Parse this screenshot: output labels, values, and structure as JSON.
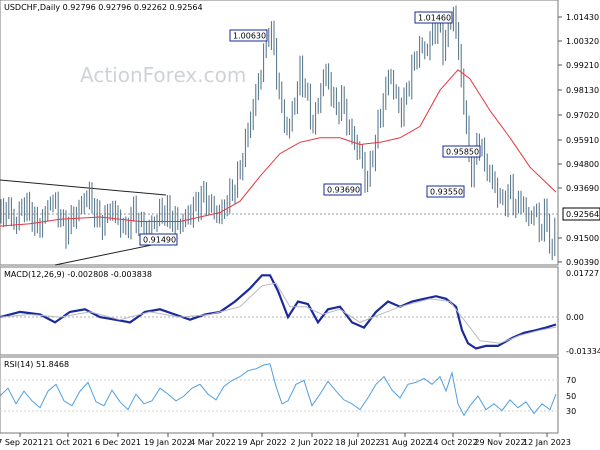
{
  "chart_data": {
    "type": "candlestick",
    "symbol_header": "USDCHF,Daily  0.92796 0.92796 0.92262 0.92564",
    "watermark": "ActionForex.com",
    "last_price": "0.92564",
    "price_ticks": [
      "1.01430",
      "1.00320",
      "0.99210",
      "0.98130",
      "0.97020",
      "0.95910",
      "0.94800",
      "0.93690",
      "0.92564",
      "0.91500",
      "0.90390"
    ],
    "price_ylim": [
      0.9039,
      1.0143
    ],
    "x_labels": [
      "7 Sep 2021",
      "21 Oct 2021",
      "6 Dec 2021",
      "19 Jan 2022",
      "4 Mar 2022",
      "19 Apr 2022",
      "2 Jun 2022",
      "18 Jul 2022",
      "31 Aug 2022",
      "14 Oct 2022",
      "29 Nov 2022",
      "12 Jan 2023"
    ],
    "price_path": [
      [
        0,
        0.922
      ],
      [
        8,
        0.926
      ],
      [
        15,
        0.918
      ],
      [
        22,
        0.928
      ],
      [
        30,
        0.924
      ],
      [
        37,
        0.917
      ],
      [
        44,
        0.922
      ],
      [
        50,
        0.93
      ],
      [
        58,
        0.925
      ],
      [
        65,
        0.915
      ],
      [
        72,
        0.922
      ],
      [
        80,
        0.926
      ],
      [
        88,
        0.932
      ],
      [
        95,
        0.924
      ],
      [
        103,
        0.919
      ],
      [
        110,
        0.926
      ],
      [
        118,
        0.921
      ],
      [
        125,
        0.916
      ],
      [
        133,
        0.925
      ],
      [
        140,
        0.918
      ],
      [
        148,
        0.916
      ],
      [
        155,
        0.921
      ],
      [
        163,
        0.925
      ],
      [
        170,
        0.922
      ],
      [
        178,
        0.919
      ],
      [
        186,
        0.922
      ],
      [
        195,
        0.926
      ],
      [
        204,
        0.932
      ],
      [
        212,
        0.926
      ],
      [
        220,
        0.922
      ],
      [
        228,
        0.93
      ],
      [
        236,
        0.937
      ],
      [
        242,
        0.947
      ],
      [
        248,
        0.96
      ],
      [
        254,
        0.972
      ],
      [
        260,
        0.985
      ],
      [
        266,
        1.0
      ],
      [
        270,
        1.006
      ],
      [
        274,
        0.995
      ],
      [
        278,
        0.98
      ],
      [
        283,
        0.966
      ],
      [
        288,
        0.96
      ],
      [
        294,
        0.972
      ],
      [
        300,
        0.985
      ],
      [
        306,
        0.978
      ],
      [
        312,
        0.962
      ],
      [
        318,
        0.972
      ],
      [
        324,
        0.986
      ],
      [
        330,
        0.98
      ],
      [
        336,
        0.968
      ],
      [
        342,
        0.975
      ],
      [
        348,
        0.962
      ],
      [
        354,
        0.955
      ],
      [
        360,
        0.95
      ],
      [
        366,
        0.937
      ],
      [
        372,
        0.948
      ],
      [
        378,
        0.962
      ],
      [
        384,
        0.975
      ],
      [
        390,
        0.986
      ],
      [
        396,
        0.975
      ],
      [
        402,
        0.968
      ],
      [
        408,
        0.98
      ],
      [
        414,
        0.99
      ],
      [
        420,
        0.998
      ],
      [
        426,
        0.995
      ],
      [
        432,
        1.003
      ],
      [
        438,
        1.008
      ],
      [
        443,
        0.997
      ],
      [
        448,
        1.005
      ],
      [
        453,
        1.014
      ],
      [
        457,
        1.0
      ],
      [
        461,
        0.985
      ],
      [
        465,
        0.965
      ],
      [
        469,
        0.95
      ],
      [
        473,
        0.938
      ],
      [
        477,
        0.958
      ],
      [
        481,
        0.952
      ],
      [
        486,
        0.944
      ],
      [
        492,
        0.938
      ],
      [
        498,
        0.932
      ],
      [
        504,
        0.928
      ],
      [
        510,
        0.935
      ],
      [
        516,
        0.925
      ],
      [
        522,
        0.93
      ],
      [
        528,
        0.92
      ],
      [
        534,
        0.926
      ],
      [
        540,
        0.915
      ],
      [
        546,
        0.924
      ],
      [
        552,
        0.903
      ],
      [
        556,
        0.92564
      ]
    ],
    "ma_path": [
      [
        0,
        0.918
      ],
      [
        30,
        0.919
      ],
      [
        60,
        0.921
      ],
      [
        100,
        0.922
      ],
      [
        140,
        0.92
      ],
      [
        180,
        0.92
      ],
      [
        220,
        0.924
      ],
      [
        240,
        0.929
      ],
      [
        260,
        0.94
      ],
      [
        280,
        0.95
      ],
      [
        300,
        0.955
      ],
      [
        320,
        0.957
      ],
      [
        340,
        0.957
      ],
      [
        360,
        0.954
      ],
      [
        380,
        0.955
      ],
      [
        400,
        0.957
      ],
      [
        420,
        0.962
      ],
      [
        440,
        0.978
      ],
      [
        458,
        0.987
      ],
      [
        470,
        0.983
      ],
      [
        490,
        0.969
      ],
      [
        510,
        0.957
      ],
      [
        530,
        0.944
      ],
      [
        556,
        0.933
      ]
    ],
    "annotations": [
      {
        "label": "1.00630",
        "value": 1.0063
      },
      {
        "label": "1.01460",
        "value": 1.0146
      },
      {
        "label": "0.93690",
        "value": 0.9369
      },
      {
        "label": "0.93550",
        "value": 0.9355
      },
      {
        "label": "0.95850",
        "value": 0.9585
      },
      {
        "label": "0.91490",
        "value": 0.9149
      }
    ],
    "macd": {
      "title": "MACD(12,26,9) -0.002808 -0.003838",
      "ticks": [
        "0.01727",
        "0.00",
        "-0.01334"
      ],
      "ylim": [
        -0.01334,
        0.01727
      ],
      "macd_path": [
        [
          0,
          0.0
        ],
        [
          20,
          0.002
        ],
        [
          40,
          0.001
        ],
        [
          55,
          -0.002
        ],
        [
          70,
          0.002
        ],
        [
          85,
          0.003
        ],
        [
          100,
          0.0
        ],
        [
          115,
          -0.001
        ],
        [
          130,
          -0.002
        ],
        [
          145,
          0.002
        ],
        [
          160,
          0.003
        ],
        [
          175,
          0.001
        ],
        [
          190,
          -0.001
        ],
        [
          205,
          0.001
        ],
        [
          220,
          0.002
        ],
        [
          235,
          0.006
        ],
        [
          250,
          0.011
        ],
        [
          262,
          0.016
        ],
        [
          270,
          0.016
        ],
        [
          278,
          0.01
        ],
        [
          288,
          0.0
        ],
        [
          298,
          0.006
        ],
        [
          308,
          0.005
        ],
        [
          318,
          -0.002
        ],
        [
          328,
          0.003
        ],
        [
          340,
          0.004
        ],
        [
          352,
          -0.002
        ],
        [
          364,
          -0.004
        ],
        [
          376,
          0.002
        ],
        [
          388,
          0.006
        ],
        [
          400,
          0.004
        ],
        [
          412,
          0.006
        ],
        [
          424,
          0.007
        ],
        [
          436,
          0.008
        ],
        [
          446,
          0.007
        ],
        [
          456,
          0.004
        ],
        [
          462,
          -0.005
        ],
        [
          468,
          -0.01
        ],
        [
          476,
          -0.012
        ],
        [
          486,
          -0.011
        ],
        [
          498,
          -0.011
        ],
        [
          512,
          -0.008
        ],
        [
          524,
          -0.006
        ],
        [
          536,
          -0.005
        ],
        [
          546,
          -0.004
        ],
        [
          556,
          -0.0028
        ]
      ],
      "signal_path": [
        [
          0,
          0.0
        ],
        [
          30,
          0.001
        ],
        [
          60,
          0.0
        ],
        [
          90,
          0.002
        ],
        [
          120,
          -0.001
        ],
        [
          150,
          0.002
        ],
        [
          180,
          0.0
        ],
        [
          210,
          0.001
        ],
        [
          240,
          0.004
        ],
        [
          262,
          0.012
        ],
        [
          276,
          0.013
        ],
        [
          290,
          0.004
        ],
        [
          306,
          0.004
        ],
        [
          322,
          0.001
        ],
        [
          340,
          0.003
        ],
        [
          360,
          -0.002
        ],
        [
          380,
          0.001
        ],
        [
          400,
          0.004
        ],
        [
          430,
          0.007
        ],
        [
          450,
          0.006
        ],
        [
          466,
          -0.002
        ],
        [
          480,
          -0.009
        ],
        [
          500,
          -0.01
        ],
        [
          520,
          -0.007
        ],
        [
          540,
          -0.005
        ],
        [
          556,
          -0.0038
        ]
      ]
    },
    "rsi": {
      "title": "RSI(14) 51.8468",
      "ticks": [
        "70",
        "50",
        "30"
      ],
      "ylim": [
        15,
        85
      ],
      "rsi_path": [
        [
          0,
          50
        ],
        [
          8,
          58
        ],
        [
          16,
          42
        ],
        [
          24,
          55
        ],
        [
          32,
          45
        ],
        [
          40,
          38
        ],
        [
          48,
          55
        ],
        [
          56,
          62
        ],
        [
          64,
          45
        ],
        [
          72,
          40
        ],
        [
          80,
          55
        ],
        [
          88,
          64
        ],
        [
          96,
          44
        ],
        [
          104,
          40
        ],
        [
          112,
          56
        ],
        [
          120,
          44
        ],
        [
          128,
          36
        ],
        [
          136,
          52
        ],
        [
          144,
          42
        ],
        [
          152,
          45
        ],
        [
          160,
          58
        ],
        [
          168,
          52
        ],
        [
          176,
          45
        ],
        [
          184,
          50
        ],
        [
          192,
          58
        ],
        [
          200,
          62
        ],
        [
          208,
          52
        ],
        [
          216,
          46
        ],
        [
          224,
          60
        ],
        [
          232,
          66
        ],
        [
          240,
          70
        ],
        [
          248,
          76
        ],
        [
          256,
          78
        ],
        [
          264,
          82
        ],
        [
          270,
          83
        ],
        [
          276,
          60
        ],
        [
          282,
          42
        ],
        [
          288,
          45
        ],
        [
          296,
          62
        ],
        [
          304,
          66
        ],
        [
          312,
          40
        ],
        [
          320,
          52
        ],
        [
          328,
          65
        ],
        [
          336,
          55
        ],
        [
          344,
          46
        ],
        [
          352,
          42
        ],
        [
          360,
          36
        ],
        [
          368,
          48
        ],
        [
          376,
          62
        ],
        [
          384,
          70
        ],
        [
          392,
          56
        ],
        [
          400,
          48
        ],
        [
          408,
          62
        ],
        [
          416,
          64
        ],
        [
          424,
          68
        ],
        [
          432,
          62
        ],
        [
          440,
          70
        ],
        [
          446,
          55
        ],
        [
          452,
          74
        ],
        [
          458,
          42
        ],
        [
          464,
          30
        ],
        [
          470,
          40
        ],
        [
          478,
          50
        ],
        [
          486,
          36
        ],
        [
          494,
          42
        ],
        [
          502,
          35
        ],
        [
          510,
          46
        ],
        [
          518,
          38
        ],
        [
          526,
          44
        ],
        [
          534,
          32
        ],
        [
          542,
          42
        ],
        [
          550,
          36
        ],
        [
          556,
          52
        ]
      ]
    },
    "colors": {
      "price": "#4f6f86",
      "ma": "#e8353d",
      "macd": "#1a2a9a",
      "signal": "#b8b8c0",
      "rsi": "#4f9fe0",
      "box_border": "#1a2a9a",
      "grid": "#c8c8c8"
    }
  }
}
